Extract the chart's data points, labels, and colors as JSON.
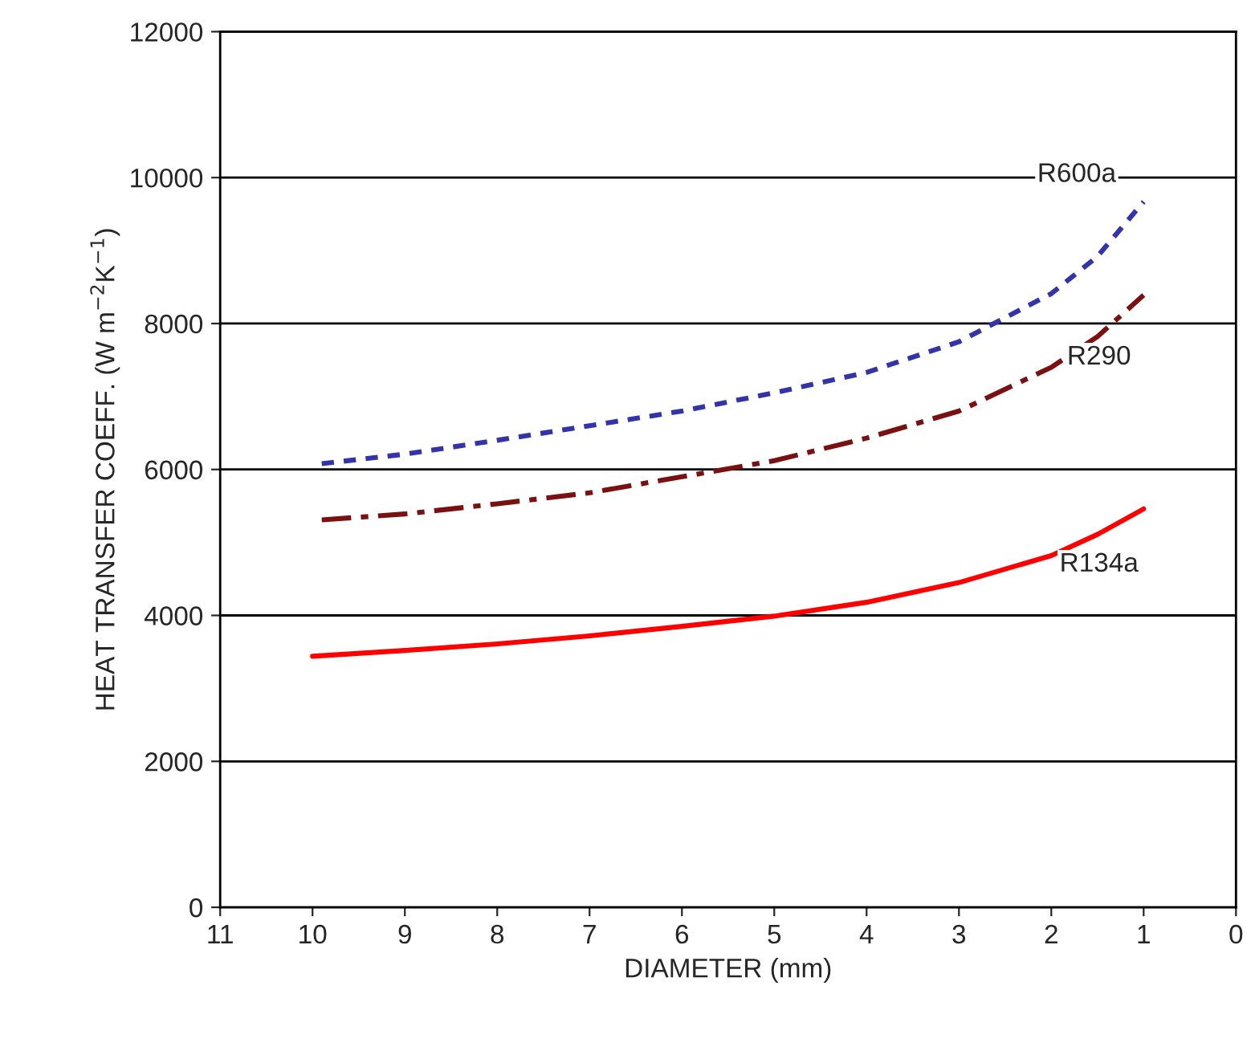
{
  "chart_data": {
    "type": "line",
    "xlabel": "DIAMETER (mm)",
    "ylabel": "HEAT TRANSFER COEFF. (W m$^{−2}$K$^{−1}$)",
    "xlim": [
      11,
      0
    ],
    "xticks": [
      11,
      10,
      9,
      8,
      7,
      6,
      5,
      4,
      3,
      2,
      1,
      0
    ],
    "ylim": [
      0,
      12000
    ],
    "yticks": [
      0,
      2000,
      4000,
      6000,
      8000,
      10000,
      12000
    ],
    "grid": "y",
    "legend": false,
    "marker": "none",
    "series": [
      {
        "name": "R600a",
        "color": "#3333aa",
        "line_style": "dashed",
        "x": [
          9.9,
          9,
          8,
          7,
          6,
          5,
          4,
          3,
          2,
          1.5,
          1
        ],
        "values": [
          6080,
          6210,
          6400,
          6600,
          6800,
          7050,
          7330,
          7750,
          8410,
          8920,
          9670
        ]
      },
      {
        "name": "R290",
        "color": "#7a1010",
        "line_style": "dashdot",
        "x": [
          9.9,
          9,
          8,
          7,
          6,
          5,
          4,
          3,
          2,
          1.5,
          1
        ],
        "values": [
          5310,
          5390,
          5530,
          5680,
          5900,
          6120,
          6430,
          6800,
          7400,
          7820,
          8390
        ]
      },
      {
        "name": "R134a",
        "color": "#ff0000",
        "line_style": "solid",
        "x": [
          10,
          9,
          8,
          7,
          6,
          5,
          4,
          3,
          2,
          1.5,
          1
        ],
        "values": [
          3440,
          3520,
          3610,
          3720,
          3850,
          3990,
          4180,
          4450,
          4820,
          5110,
          5460
        ]
      }
    ]
  }
}
